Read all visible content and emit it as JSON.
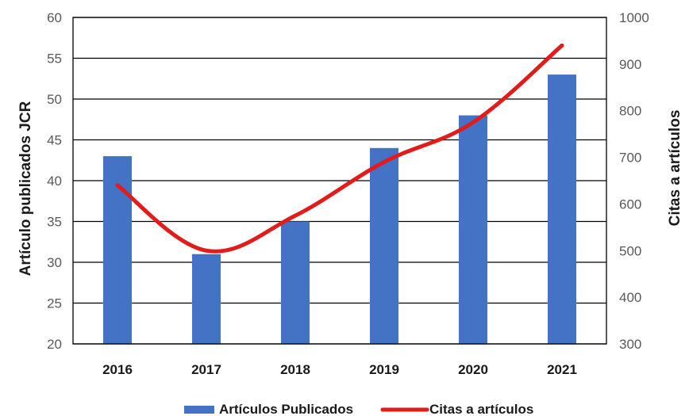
{
  "chart_data": {
    "type": "bar+line",
    "categories": [
      "2016",
      "2017",
      "2018",
      "2019",
      "2020",
      "2021"
    ],
    "series": [
      {
        "name": "Artículos Publicados",
        "type": "bar",
        "axis": "left",
        "color": "#4472c4",
        "values": [
          43,
          31,
          35,
          44,
          48,
          53
        ]
      },
      {
        "name": "Citas a artículos",
        "type": "line",
        "axis": "right",
        "color": "#e21b1b",
        "values": [
          640,
          500,
          575,
          690,
          775,
          940
        ]
      }
    ],
    "ylabel": "Artículo publicados JCR",
    "ylabel_right": "Citas a artículos",
    "ylim": [
      20,
      60
    ],
    "ylim_right": [
      300,
      1000
    ],
    "yticks": [
      "20",
      "25",
      "30",
      "35",
      "40",
      "45",
      "50",
      "55",
      "60"
    ],
    "yticks_right": [
      "300",
      "400",
      "500",
      "600",
      "700",
      "800",
      "900",
      "1000"
    ],
    "grid": true,
    "legend": "bottom"
  }
}
